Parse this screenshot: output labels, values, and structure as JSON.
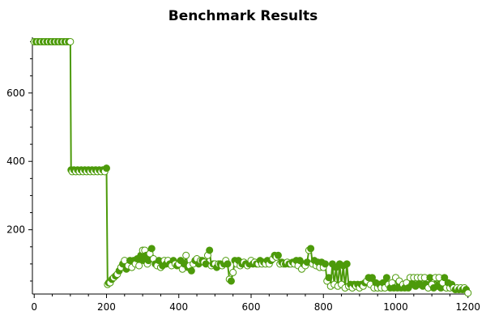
{
  "chart_data": {
    "type": "line",
    "title": "Benchmark Results",
    "xlabel": "",
    "ylabel": "",
    "xlim": [
      -5,
      1205
    ],
    "ylim": [
      12,
      763
    ],
    "x_ticks": [
      0,
      200,
      400,
      600,
      800,
      1000,
      1200
    ],
    "y_ticks": [
      200,
      400,
      600
    ],
    "grid": false,
    "legend": "none",
    "colors": {
      "line": "#4c9a0a",
      "marker_fill": "#4c9a0a",
      "marker_hollow": "#ffffff",
      "axis": "#000000"
    },
    "series": [
      {
        "points": [
          [
            0,
            750
          ],
          [
            5,
            750
          ],
          [
            10,
            750
          ],
          [
            15,
            750
          ],
          [
            20,
            750
          ],
          [
            25,
            750
          ],
          [
            30,
            750
          ],
          [
            35,
            750
          ],
          [
            40,
            750
          ],
          [
            45,
            750
          ],
          [
            50,
            750
          ],
          [
            55,
            750
          ],
          [
            60,
            750
          ],
          [
            65,
            750
          ],
          [
            70,
            750
          ],
          [
            75,
            750
          ],
          [
            80,
            750
          ],
          [
            85,
            750
          ],
          [
            90,
            750
          ],
          [
            95,
            750
          ],
          [
            100,
            750
          ],
          [
            102,
            375
          ],
          [
            105,
            370
          ],
          [
            110,
            375
          ],
          [
            115,
            370
          ],
          [
            120,
            375
          ],
          [
            125,
            370
          ],
          [
            130,
            375
          ],
          [
            135,
            370
          ],
          [
            140,
            375
          ],
          [
            145,
            370
          ],
          [
            150,
            375
          ],
          [
            155,
            370
          ],
          [
            160,
            375
          ],
          [
            165,
            370
          ],
          [
            170,
            375
          ],
          [
            175,
            370
          ],
          [
            180,
            375
          ],
          [
            185,
            370
          ],
          [
            190,
            375
          ],
          [
            195,
            370
          ],
          [
            200,
            380
          ],
          [
            203,
            40
          ],
          [
            206,
            45
          ],
          [
            210,
            45
          ],
          [
            215,
            55
          ],
          [
            220,
            60
          ],
          [
            225,
            65
          ],
          [
            230,
            70
          ],
          [
            235,
            80
          ],
          [
            240,
            90
          ],
          [
            245,
            100
          ],
          [
            250,
            110
          ],
          [
            255,
            85
          ],
          [
            260,
            95
          ],
          [
            265,
            110
          ],
          [
            270,
            90
          ],
          [
            275,
            110
          ],
          [
            280,
            100
          ],
          [
            285,
            115
          ],
          [
            290,
            95
          ],
          [
            295,
            125
          ],
          [
            300,
            140
          ],
          [
            303,
            110
          ],
          [
            306,
            140
          ],
          [
            310,
            125
          ],
          [
            313,
            100
          ],
          [
            316,
            110
          ],
          [
            320,
            130
          ],
          [
            325,
            145
          ],
          [
            330,
            115
          ],
          [
            335,
            100
          ],
          [
            340,
            95
          ],
          [
            345,
            110
          ],
          [
            350,
            90
          ],
          [
            355,
            95
          ],
          [
            360,
            110
          ],
          [
            365,
            100
          ],
          [
            370,
            110
          ],
          [
            375,
            100
          ],
          [
            380,
            95
          ],
          [
            385,
            110
          ],
          [
            390,
            100
          ],
          [
            395,
            95
          ],
          [
            400,
            100
          ],
          [
            405,
            110
          ],
          [
            410,
            85
          ],
          [
            415,
            100
          ],
          [
            420,
            125
          ],
          [
            425,
            90
          ],
          [
            430,
            95
          ],
          [
            435,
            80
          ],
          [
            440,
            100
          ],
          [
            445,
            110
          ],
          [
            450,
            115
          ],
          [
            455,
            100
          ],
          [
            460,
            110
          ],
          [
            465,
            110
          ],
          [
            470,
            105
          ],
          [
            475,
            100
          ],
          [
            480,
            125
          ],
          [
            485,
            140
          ],
          [
            490,
            95
          ],
          [
            495,
            100
          ],
          [
            500,
            100
          ],
          [
            505,
            90
          ],
          [
            510,
            100
          ],
          [
            515,
            100
          ],
          [
            520,
            95
          ],
          [
            525,
            100
          ],
          [
            530,
            110
          ],
          [
            535,
            100
          ],
          [
            540,
            55
          ],
          [
            545,
            50
          ],
          [
            550,
            75
          ],
          [
            555,
            110
          ],
          [
            560,
            100
          ],
          [
            565,
            110
          ],
          [
            570,
            95
          ],
          [
            575,
            100
          ],
          [
            580,
            105
          ],
          [
            585,
            100
          ],
          [
            590,
            95
          ],
          [
            595,
            100
          ],
          [
            600,
            110
          ],
          [
            605,
            100
          ],
          [
            610,
            105
          ],
          [
            615,
            100
          ],
          [
            620,
            100
          ],
          [
            625,
            110
          ],
          [
            630,
            100
          ],
          [
            635,
            105
          ],
          [
            640,
            100
          ],
          [
            645,
            110
          ],
          [
            650,
            100
          ],
          [
            655,
            110
          ],
          [
            660,
            115
          ],
          [
            665,
            125
          ],
          [
            670,
            120
          ],
          [
            675,
            125
          ],
          [
            680,
            100
          ],
          [
            685,
            105
          ],
          [
            690,
            100
          ],
          [
            695,
            100
          ],
          [
            700,
            105
          ],
          [
            705,
            100
          ],
          [
            710,
            100
          ],
          [
            715,
            105
          ],
          [
            720,
            100
          ],
          [
            725,
            110
          ],
          [
            730,
            95
          ],
          [
            735,
            110
          ],
          [
            740,
            85
          ],
          [
            745,
            100
          ],
          [
            750,
            95
          ],
          [
            755,
            105
          ],
          [
            760,
            140
          ],
          [
            765,
            145
          ],
          [
            770,
            100
          ],
          [
            775,
            110
          ],
          [
            780,
            95
          ],
          [
            785,
            105
          ],
          [
            790,
            90
          ],
          [
            795,
            105
          ],
          [
            800,
            90
          ],
          [
            805,
            100
          ],
          [
            810,
            50
          ],
          [
            815,
            60
          ],
          [
            820,
            35
          ],
          [
            825,
            100
          ],
          [
            830,
            40
          ],
          [
            835,
            90
          ],
          [
            840,
            35
          ],
          [
            845,
            100
          ],
          [
            850,
            40
          ],
          [
            855,
            95
          ],
          [
            860,
            30
          ],
          [
            865,
            100
          ],
          [
            870,
            35
          ],
          [
            875,
            40
          ],
          [
            880,
            30
          ],
          [
            885,
            40
          ],
          [
            890,
            35
          ],
          [
            895,
            40
          ],
          [
            900,
            30
          ],
          [
            905,
            40
          ],
          [
            910,
            35
          ],
          [
            915,
            45
          ],
          [
            920,
            50
          ],
          [
            925,
            60
          ],
          [
            930,
            40
          ],
          [
            935,
            60
          ],
          [
            940,
            30
          ],
          [
            945,
            45
          ],
          [
            950,
            30
          ],
          [
            955,
            40
          ],
          [
            960,
            30
          ],
          [
            965,
            45
          ],
          [
            970,
            30
          ],
          [
            975,
            60
          ],
          [
            980,
            40
          ],
          [
            985,
            30
          ],
          [
            990,
            45
          ],
          [
            995,
            30
          ],
          [
            1000,
            60
          ],
          [
            1005,
            30
          ],
          [
            1010,
            50
          ],
          [
            1015,
            30
          ],
          [
            1020,
            40
          ],
          [
            1025,
            30
          ],
          [
            1030,
            45
          ],
          [
            1035,
            30
          ],
          [
            1040,
            60
          ],
          [
            1045,
            40
          ],
          [
            1050,
            60
          ],
          [
            1055,
            35
          ],
          [
            1060,
            60
          ],
          [
            1065,
            40
          ],
          [
            1070,
            60
          ],
          [
            1075,
            35
          ],
          [
            1080,
            60
          ],
          [
            1085,
            40
          ],
          [
            1090,
            30
          ],
          [
            1095,
            60
          ],
          [
            1100,
            40
          ],
          [
            1105,
            30
          ],
          [
            1110,
            60
          ],
          [
            1115,
            35
          ],
          [
            1120,
            60
          ],
          [
            1125,
            30
          ],
          [
            1130,
            45
          ],
          [
            1135,
            60
          ],
          [
            1140,
            30
          ],
          [
            1145,
            45
          ],
          [
            1150,
            30
          ],
          [
            1155,
            40
          ],
          [
            1160,
            30
          ],
          [
            1165,
            25
          ],
          [
            1170,
            30
          ],
          [
            1175,
            25
          ],
          [
            1180,
            30
          ],
          [
            1185,
            25
          ],
          [
            1190,
            30
          ],
          [
            1195,
            25
          ],
          [
            1200,
            15
          ]
        ]
      }
    ]
  }
}
